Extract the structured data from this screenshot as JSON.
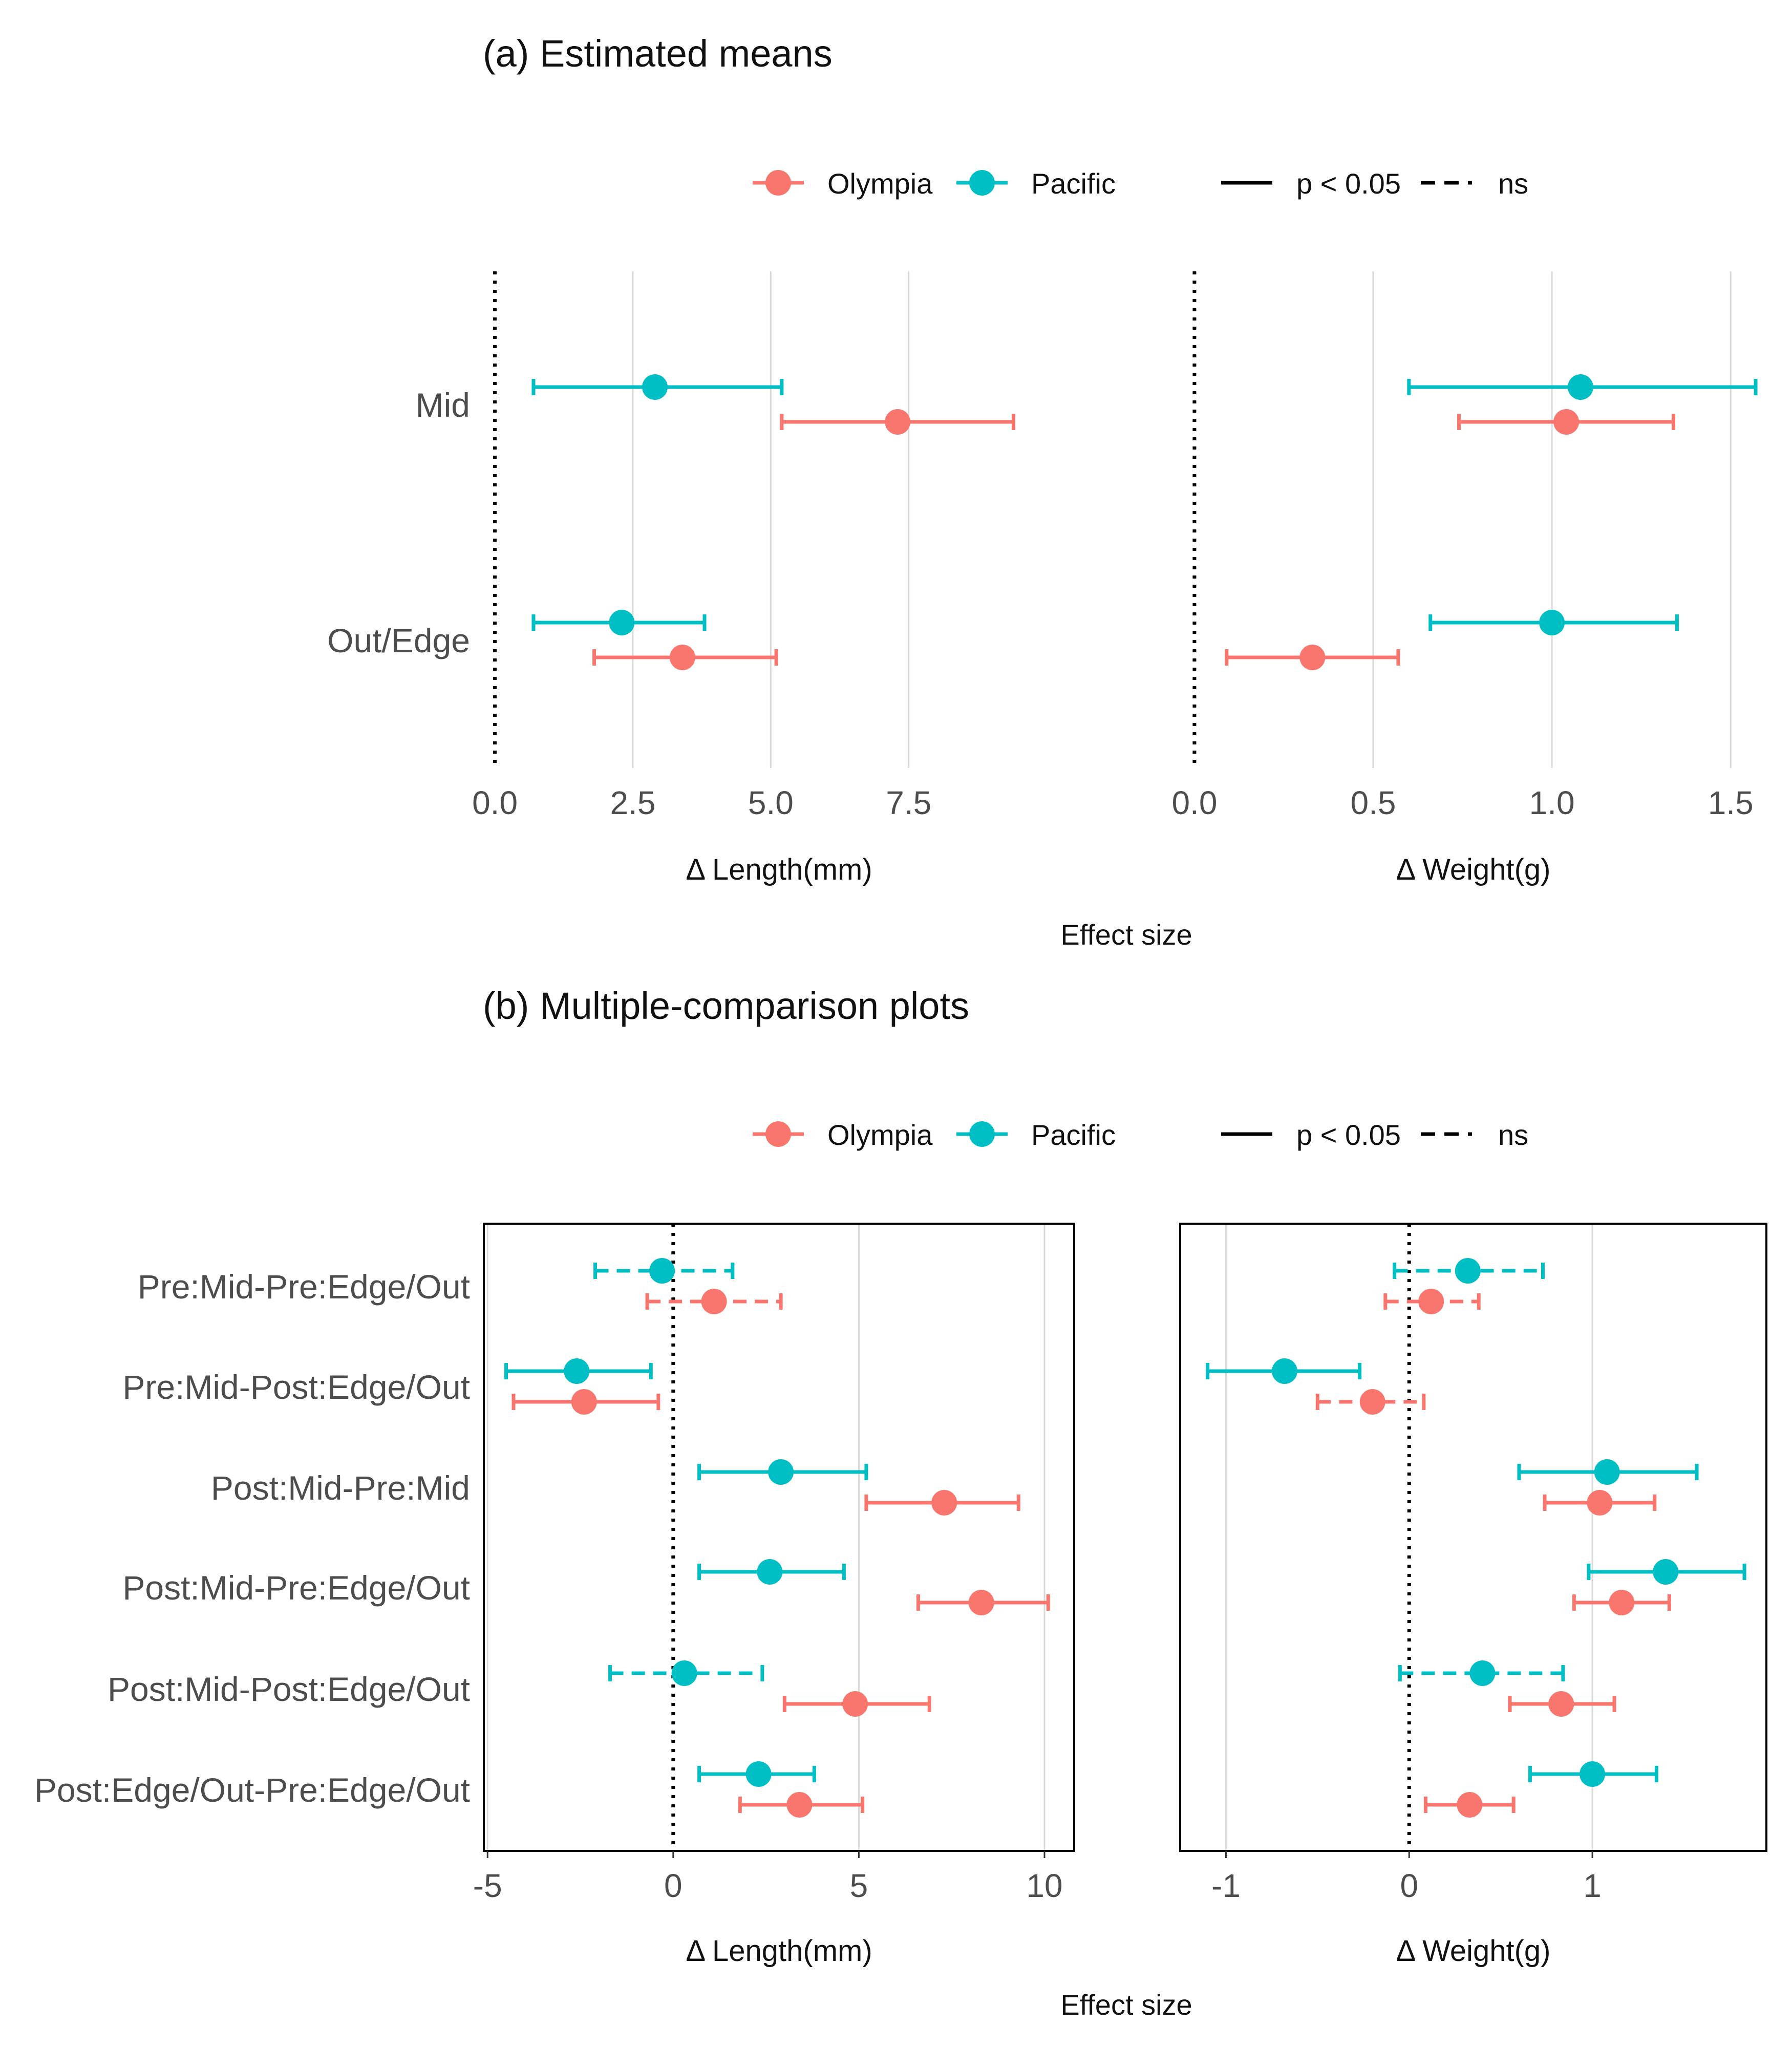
{
  "colors": {
    "olympia": "#F8766D",
    "pacific": "#00BFC4",
    "grid": "#d9d9d9",
    "zero": "#000000",
    "frame": "#000000"
  },
  "legend": {
    "items": [
      {
        "label": "Olympia",
        "color": "#F8766D"
      },
      {
        "label": "Pacific",
        "color": "#00BFC4"
      }
    ],
    "line_types": [
      {
        "label": "p < 0.05",
        "style": "solid"
      },
      {
        "label": "ns",
        "style": "dashed"
      }
    ]
  },
  "sections": [
    {
      "title": "(a) Estimated means",
      "effect_label": "Effect size"
    },
    {
      "title": "(b) Multiple-comparison plots",
      "effect_label": "Effect size"
    }
  ],
  "chart_data": [
    {
      "type": "scatter",
      "style": "pointrange-horizontal",
      "panel": "a-length",
      "xlabel": "Δ Length(mm)",
      "xlim": [
        -0.2,
        10.5
      ],
      "xticks": [
        0,
        2.5,
        5,
        7.5
      ],
      "xtick_labels": [
        "0.0",
        "2.5",
        "5.0",
        "7.5"
      ],
      "categories": [
        "Mid",
        "Out/Edge"
      ],
      "grid": "vertical",
      "zero_line": "dotted",
      "frame": false,
      "series": [
        {
          "name": "Pacific",
          "color": "#00BFC4",
          "points": [
            {
              "category": "Mid",
              "est": 2.9,
              "lo": 0.7,
              "hi": 5.2,
              "sig": true
            },
            {
              "category": "Out/Edge",
              "est": 2.3,
              "lo": 0.7,
              "hi": 3.8,
              "sig": true
            }
          ]
        },
        {
          "name": "Olympia",
          "color": "#F8766D",
          "points": [
            {
              "category": "Mid",
              "est": 7.3,
              "lo": 5.2,
              "hi": 9.4,
              "sig": true
            },
            {
              "category": "Out/Edge",
              "est": 3.4,
              "lo": 1.8,
              "hi": 5.1,
              "sig": true
            }
          ]
        }
      ]
    },
    {
      "type": "scatter",
      "style": "pointrange-horizontal",
      "panel": "a-weight",
      "xlabel": "Δ Weight(g)",
      "xlim": [
        -0.04,
        1.6
      ],
      "xticks": [
        0,
        0.5,
        1,
        1.5
      ],
      "xtick_labels": [
        "0.0",
        "0.5",
        "1.0",
        "1.5"
      ],
      "categories": [
        "Mid",
        "Out/Edge"
      ],
      "grid": "vertical",
      "zero_line": "dotted",
      "frame": false,
      "series": [
        {
          "name": "Pacific",
          "color": "#00BFC4",
          "points": [
            {
              "category": "Mid",
              "est": 1.08,
              "lo": 0.6,
              "hi": 1.57,
              "sig": true
            },
            {
              "category": "Out/Edge",
              "est": 1.0,
              "lo": 0.66,
              "hi": 1.35,
              "sig": true
            }
          ]
        },
        {
          "name": "Olympia",
          "color": "#F8766D",
          "points": [
            {
              "category": "Mid",
              "est": 1.04,
              "lo": 0.74,
              "hi": 1.34,
              "sig": true
            },
            {
              "category": "Out/Edge",
              "est": 0.33,
              "lo": 0.09,
              "hi": 0.57,
              "sig": true
            }
          ]
        }
      ]
    },
    {
      "type": "scatter",
      "style": "pointrange-horizontal",
      "panel": "b-length",
      "xlabel": "Δ Length(mm)",
      "xlim": [
        -5.1,
        10.8
      ],
      "xticks": [
        -5,
        0,
        5,
        10
      ],
      "xtick_labels": [
        "-5",
        "0",
        "5",
        "10"
      ],
      "categories": [
        "Pre:Mid-Pre:Edge/Out",
        "Pre:Mid-Post:Edge/Out",
        "Post:Mid-Pre:Mid",
        "Post:Mid-Pre:Edge/Out",
        "Post:Mid-Post:Edge/Out",
        "Post:Edge/Out-Pre:Edge/Out"
      ],
      "grid": "vertical",
      "zero_line": "dotted",
      "frame": true,
      "series": [
        {
          "name": "Pacific",
          "color": "#00BFC4",
          "points": [
            {
              "category": "Pre:Mid-Pre:Edge/Out",
              "est": -0.3,
              "lo": -2.1,
              "hi": 1.6,
              "sig": false
            },
            {
              "category": "Pre:Mid-Post:Edge/Out",
              "est": -2.6,
              "lo": -4.5,
              "hi": -0.6,
              "sig": true
            },
            {
              "category": "Post:Mid-Pre:Mid",
              "est": 2.9,
              "lo": 0.7,
              "hi": 5.2,
              "sig": true
            },
            {
              "category": "Post:Mid-Pre:Edge/Out",
              "est": 2.6,
              "lo": 0.7,
              "hi": 4.6,
              "sig": true
            },
            {
              "category": "Post:Mid-Post:Edge/Out",
              "est": 0.3,
              "lo": -1.7,
              "hi": 2.4,
              "sig": false
            },
            {
              "category": "Post:Edge/Out-Pre:Edge/Out",
              "est": 2.3,
              "lo": 0.7,
              "hi": 3.8,
              "sig": true
            }
          ]
        },
        {
          "name": "Olympia",
          "color": "#F8766D",
          "points": [
            {
              "category": "Pre:Mid-Pre:Edge/Out",
              "est": 1.1,
              "lo": -0.7,
              "hi": 2.9,
              "sig": false
            },
            {
              "category": "Pre:Mid-Post:Edge/Out",
              "est": -2.4,
              "lo": -4.3,
              "hi": -0.4,
              "sig": true
            },
            {
              "category": "Post:Mid-Pre:Mid",
              "est": 7.3,
              "lo": 5.2,
              "hi": 9.3,
              "sig": true
            },
            {
              "category": "Post:Mid-Pre:Edge/Out",
              "est": 8.3,
              "lo": 6.6,
              "hi": 10.1,
              "sig": true
            },
            {
              "category": "Post:Mid-Post:Edge/Out",
              "est": 4.9,
              "lo": 3.0,
              "hi": 6.9,
              "sig": true
            },
            {
              "category": "Post:Edge/Out-Pre:Edge/Out",
              "est": 3.4,
              "lo": 1.8,
              "hi": 5.1,
              "sig": true
            }
          ]
        }
      ]
    },
    {
      "type": "scatter",
      "style": "pointrange-horizontal",
      "panel": "b-weight",
      "xlabel": "Δ Weight(g)",
      "xlim": [
        -1.25,
        1.95
      ],
      "xticks": [
        -1,
        0,
        1
      ],
      "xtick_labels": [
        "-1",
        "0",
        "1"
      ],
      "categories": [
        "Pre:Mid-Pre:Edge/Out",
        "Pre:Mid-Post:Edge/Out",
        "Post:Mid-Pre:Mid",
        "Post:Mid-Pre:Edge/Out",
        "Post:Mid-Post:Edge/Out",
        "Post:Edge/Out-Pre:Edge/Out"
      ],
      "grid": "vertical",
      "zero_line": "dotted",
      "frame": true,
      "series": [
        {
          "name": "Pacific",
          "color": "#00BFC4",
          "points": [
            {
              "category": "Pre:Mid-Pre:Edge/Out",
              "est": 0.32,
              "lo": -0.08,
              "hi": 0.73,
              "sig": false
            },
            {
              "category": "Pre:Mid-Post:Edge/Out",
              "est": -0.68,
              "lo": -1.1,
              "hi": -0.27,
              "sig": true
            },
            {
              "category": "Post:Mid-Pre:Mid",
              "est": 1.08,
              "lo": 0.6,
              "hi": 1.57,
              "sig": true
            },
            {
              "category": "Post:Mid-Pre:Edge/Out",
              "est": 1.4,
              "lo": 0.98,
              "hi": 1.83,
              "sig": true
            },
            {
              "category": "Post:Mid-Post:Edge/Out",
              "est": 0.4,
              "lo": -0.05,
              "hi": 0.84,
              "sig": false
            },
            {
              "category": "Post:Edge/Out-Pre:Edge/Out",
              "est": 1.0,
              "lo": 0.66,
              "hi": 1.35,
              "sig": true
            }
          ]
        },
        {
          "name": "Olympia",
          "color": "#F8766D",
          "points": [
            {
              "category": "Pre:Mid-Pre:Edge/Out",
              "est": 0.12,
              "lo": -0.13,
              "hi": 0.38,
              "sig": false
            },
            {
              "category": "Pre:Mid-Post:Edge/Out",
              "est": -0.2,
              "lo": -0.5,
              "hi": 0.08,
              "sig": false
            },
            {
              "category": "Post:Mid-Pre:Mid",
              "est": 1.04,
              "lo": 0.74,
              "hi": 1.34,
              "sig": true
            },
            {
              "category": "Post:Mid-Pre:Edge/Out",
              "est": 1.16,
              "lo": 0.9,
              "hi": 1.42,
              "sig": true
            },
            {
              "category": "Post:Mid-Post:Edge/Out",
              "est": 0.83,
              "lo": 0.55,
              "hi": 1.12,
              "sig": true
            },
            {
              "category": "Post:Edge/Out-Pre:Edge/Out",
              "est": 0.33,
              "lo": 0.09,
              "hi": 0.57,
              "sig": true
            }
          ]
        }
      ]
    }
  ]
}
